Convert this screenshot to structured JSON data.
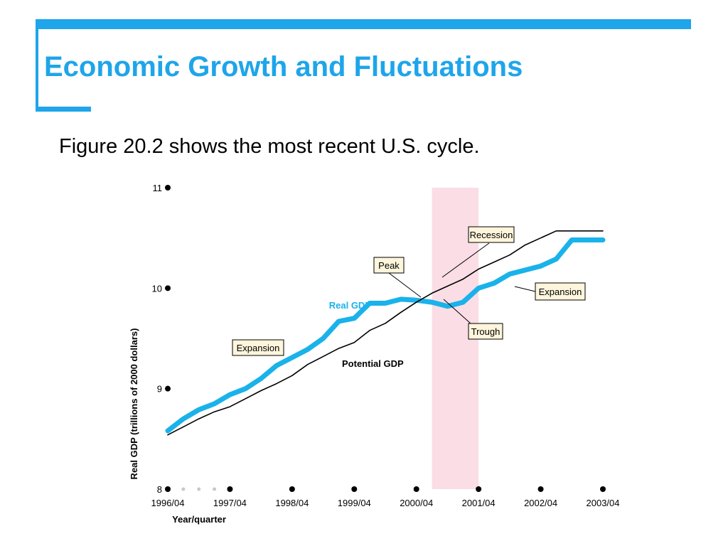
{
  "slide": {
    "title": "Economic Growth and Fluctuations",
    "subtitle": "Figure 20.2 shows the most recent U.S. cycle."
  },
  "colors": {
    "accent": "#1ea5ea",
    "real_gdp": "#1ab2ea",
    "potential_gdp": "#000000",
    "recession": "#fbdde6",
    "label_box_fill": "#fdf5dc"
  },
  "chart_data": {
    "type": "line",
    "xlabel": "Year/quarter",
    "ylabel": "Real GDP (trillions of 2000 dollars)",
    "ylim": [
      8,
      11
    ],
    "y_ticks": [
      {
        "label": "8",
        "value": 8
      },
      {
        "label": "9",
        "value": 9
      },
      {
        "label": "10",
        "value": 10
      },
      {
        "label": "11",
        "value": 11
      }
    ],
    "x_ticks": [
      {
        "label": "1996/04",
        "value": 1996.75
      },
      {
        "label": "1997/04",
        "value": 1997.75
      },
      {
        "label": "1998/04",
        "value": 1998.75
      },
      {
        "label": "1999/04",
        "value": 1999.75
      },
      {
        "label": "2000/04",
        "value": 2000.75
      },
      {
        "label": "2001/04",
        "value": 2001.75
      },
      {
        "label": "2002/04",
        "value": 2002.75
      },
      {
        "label": "2003/04",
        "value": 2003.75
      }
    ],
    "minor_x_ticks": [
      2000,
      2000.25,
      2000.5
    ],
    "xlim": [
      1996.75,
      2003.75
    ],
    "recession": {
      "start": 2001.0,
      "end": 2001.75
    },
    "series": [
      {
        "name": "Real GDP",
        "x": [
          1996.75,
          1997.0,
          1997.25,
          1997.5,
          1997.75,
          1998.0,
          1998.25,
          1998.5,
          1998.75,
          1999.0,
          1999.25,
          1999.5,
          1999.75,
          2000.0,
          2000.25,
          2000.5,
          2000.75,
          2001.0,
          2001.25,
          2001.5,
          2001.75,
          2002.0,
          2002.25,
          2002.5,
          2002.75,
          2003.0,
          2003.25,
          2003.5,
          2003.75
        ],
        "y": [
          8.58,
          8.7,
          8.79,
          8.85,
          8.94,
          9.0,
          9.1,
          9.23,
          9.31,
          9.39,
          9.5,
          9.67,
          9.7,
          9.85,
          9.85,
          9.89,
          9.88,
          9.86,
          9.82,
          9.86,
          10.0,
          10.05,
          10.14,
          10.18,
          10.22,
          10.29,
          10.48,
          10.48,
          10.48
        ],
        "style": "thick",
        "color": "#1ab2ea"
      },
      {
        "name": "Potential GDP",
        "x": [
          1996.75,
          1997.0,
          1997.25,
          1997.5,
          1997.75,
          1998.0,
          1998.25,
          1998.5,
          1998.75,
          1999.0,
          1999.25,
          1999.5,
          1999.75,
          2000.0,
          2000.25,
          2000.5,
          2000.75,
          2001.0,
          2001.25,
          2001.5,
          2001.75,
          2002.0,
          2002.25,
          2002.5,
          2002.75,
          2003.0,
          2003.25,
          2003.5,
          2003.75
        ],
        "y": [
          8.54,
          8.62,
          8.7,
          8.77,
          8.82,
          8.9,
          8.98,
          9.05,
          9.13,
          9.24,
          9.32,
          9.4,
          9.46,
          9.58,
          9.65,
          9.76,
          9.86,
          9.95,
          10.02,
          10.09,
          10.19,
          10.26,
          10.33,
          10.43,
          10.5,
          10.57,
          10.57,
          10.57,
          10.57
        ],
        "style": "thin",
        "color": "#000000"
      }
    ],
    "annotations": [
      {
        "text": "Recession",
        "kind": "box"
      },
      {
        "text": "Peak",
        "kind": "box"
      },
      {
        "text": "Expansion",
        "kind": "box"
      },
      {
        "text": "Trough",
        "kind": "box"
      },
      {
        "text": "Expansion",
        "kind": "box"
      }
    ],
    "series_labels": [
      {
        "text": "Real GDP"
      },
      {
        "text": "Potential GDP"
      }
    ],
    "grid": false,
    "legend": "none"
  }
}
